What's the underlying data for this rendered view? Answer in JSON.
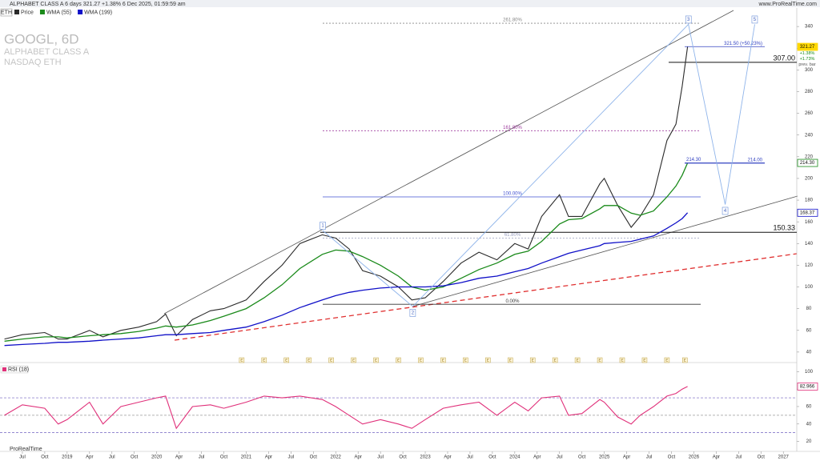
{
  "header": {
    "title": "ALPHABET CLASS A 6 days 321.27 +1.38% 6 Dec 2025, 01:59:59 am",
    "site": "www.ProRealTime.com",
    "tab": "ETH",
    "brand": "ProRealTime"
  },
  "chart_data": [
    {
      "type": "line",
      "title": "GOOGL, 6D",
      "subtitle": "ALPHABET CLASS A",
      "exchange": "NASDAQ ETH",
      "x": [
        2018.3,
        2018.5,
        2018.75,
        2018.9,
        2019.0,
        2019.25,
        2019.4,
        2019.6,
        2019.8,
        2020.0,
        2020.1,
        2020.22,
        2020.4,
        2020.6,
        2020.75,
        2021.0,
        2021.2,
        2021.4,
        2021.6,
        2021.85,
        2022.0,
        2022.15,
        2022.3,
        2022.5,
        2022.7,
        2022.85,
        2023.0,
        2023.2,
        2023.4,
        2023.6,
        2023.8,
        2024.0,
        2024.15,
        2024.3,
        2024.5,
        2024.6,
        2024.75,
        2024.95,
        2025.0,
        2025.15,
        2025.3,
        2025.4,
        2025.55,
        2025.7,
        2025.8,
        2025.87,
        2025.93
      ],
      "series": [
        {
          "name": "Price",
          "color": "#2a2a2a",
          "values": [
            52,
            56,
            58,
            52,
            52,
            60,
            54,
            60,
            63,
            68,
            75,
            55,
            70,
            78,
            80,
            88,
            105,
            120,
            140,
            148,
            145,
            135,
            115,
            110,
            100,
            88,
            90,
            105,
            122,
            132,
            125,
            140,
            135,
            165,
            185,
            165,
            165,
            195,
            200,
            175,
            155,
            165,
            185,
            235,
            250,
            285,
            321.27
          ]
        },
        {
          "name": "WMA (55)",
          "color": "#1a8a1a",
          "values": [
            50,
            52,
            54,
            54,
            53,
            55,
            56,
            57,
            59,
            62,
            64,
            63,
            65,
            69,
            73,
            80,
            90,
            102,
            117,
            130,
            134,
            133,
            128,
            120,
            110,
            100,
            97,
            100,
            108,
            116,
            122,
            130,
            133,
            142,
            158,
            162,
            163,
            172,
            175,
            175,
            168,
            166,
            170,
            183,
            193,
            203,
            214.3
          ]
        },
        {
          "name": "WMA (199)",
          "color": "#1010c8",
          "values": [
            46,
            47,
            48,
            49,
            49,
            50,
            51,
            52,
            53,
            55,
            56,
            56,
            57,
            58,
            60,
            63,
            68,
            74,
            81,
            88,
            92,
            95,
            97,
            99,
            100,
            100,
            100,
            101,
            104,
            108,
            110,
            114,
            117,
            122,
            128,
            131,
            134,
            138,
            140,
            141,
            142,
            144,
            147,
            154,
            159,
            163,
            168.37
          ]
        }
      ],
      "xlim": [
        2018.25,
        2027.15
      ],
      "ylim": [
        34,
        346
      ],
      "yticks": [
        40,
        60,
        80,
        100,
        120,
        140,
        160,
        180,
        200,
        220,
        240,
        260,
        280,
        300,
        320,
        340
      ],
      "hlines": [
        {
          "value": 307,
          "label": "307.00"
        },
        150.33
      ],
      "fib": [
        {
          "price": 343,
          "label": "261.80%",
          "color": "#888888"
        },
        {
          "price": 244,
          "label": "161.80%",
          "color": "#a040a0"
        },
        {
          "price": 183,
          "label": "100.00%",
          "color": "#4050d0"
        },
        {
          "price": 145,
          "label": "61.80%",
          "color": "#9aa0c0"
        },
        {
          "price": 84,
          "label": "0.00%",
          "color": "#333333"
        }
      ],
      "targets": [
        {
          "value": 321.5,
          "label": "321.50 (+50.23%)"
        },
        {
          "value": 214.3,
          "label": "214.30"
        },
        {
          "value": 214,
          "label": "214.00"
        }
      ],
      "waves": {
        "labels": [
          "1",
          "2",
          "3",
          "4",
          "5"
        ],
        "x": [
          2021.855,
          2022.86,
          2025.94,
          2026.35,
          2026.68
        ],
        "y": [
          152,
          82,
          342,
          176,
          342
        ]
      },
      "badges": [
        {
          "value": 321.27,
          "color": "#ffd800"
        },
        {
          "value": 214.3,
          "label": "214.30",
          "color": "#1a8a1a"
        },
        {
          "value": 168.37,
          "color": "#1010c8"
        }
      ],
      "change_labels": [
        "+1.38%",
        "+1.73%",
        "prev. bar"
      ],
      "earnings_label": "E",
      "earnings_x": [
        2020.95,
        2021.2,
        2021.45,
        2021.7,
        2021.95,
        2022.2,
        2022.45,
        2022.7,
        2022.95,
        2023.2,
        2023.45,
        2023.7,
        2023.95,
        2024.2,
        2024.45,
        2024.7,
        2024.95,
        2025.2,
        2025.45,
        2025.7,
        2025.9
      ]
    },
    {
      "type": "line",
      "title": "RSI (18)",
      "x": [
        2018.3,
        2018.5,
        2018.75,
        2018.9,
        2019.0,
        2019.25,
        2019.4,
        2019.6,
        2019.8,
        2020.0,
        2020.1,
        2020.22,
        2020.4,
        2020.6,
        2020.75,
        2021.0,
        2021.2,
        2021.4,
        2021.6,
        2021.85,
        2022.0,
        2022.15,
        2022.3,
        2022.5,
        2022.7,
        2022.85,
        2023.0,
        2023.2,
        2023.4,
        2023.6,
        2023.8,
        2024.0,
        2024.15,
        2024.3,
        2024.5,
        2024.6,
        2024.75,
        2024.95,
        2025.0,
        2025.15,
        2025.3,
        2025.4,
        2025.55,
        2025.7,
        2025.8,
        2025.87,
        2025.93
      ],
      "series": [
        {
          "name": "RSI (18)",
          "color": "#e0307a",
          "values": [
            50,
            62,
            58,
            40,
            45,
            65,
            40,
            60,
            65,
            70,
            72,
            35,
            60,
            62,
            58,
            65,
            72,
            70,
            72,
            68,
            60,
            50,
            40,
            45,
            40,
            35,
            45,
            58,
            62,
            65,
            50,
            65,
            55,
            70,
            72,
            50,
            52,
            68,
            65,
            48,
            40,
            50,
            60,
            72,
            75,
            80,
            82.966
          ]
        }
      ],
      "xlim": [
        2018.25,
        2027.15
      ],
      "ylim": [
        15,
        104
      ],
      "yticks": [
        20,
        40,
        60,
        80,
        100
      ],
      "levels": [
        30,
        50,
        70
      ],
      "xticks": [
        {
          "value": 2018.5,
          "label": "Jul"
        },
        {
          "value": 2018.75,
          "label": "Oct"
        },
        2019,
        {
          "value": 2019.25,
          "label": "Apr"
        },
        {
          "value": 2019.5,
          "label": "Jul"
        },
        {
          "value": 2019.75,
          "label": "Oct"
        },
        2020,
        {
          "value": 2020.25,
          "label": "Apr"
        },
        {
          "value": 2020.5,
          "label": "Jul"
        },
        {
          "value": 2020.75,
          "label": "Oct"
        },
        2021,
        {
          "value": 2021.25,
          "label": "Apr"
        },
        {
          "value": 2021.5,
          "label": "Jul"
        },
        {
          "value": 2021.75,
          "label": "Oct"
        },
        2022,
        {
          "value": 2022.25,
          "label": "Apr"
        },
        {
          "value": 2022.5,
          "label": "Jul"
        },
        {
          "value": 2022.75,
          "label": "Oct"
        },
        2023,
        {
          "value": 2023.25,
          "label": "Apr"
        },
        {
          "value": 2023.5,
          "label": "Jul"
        },
        {
          "value": 2023.75,
          "label": "Oct"
        },
        2024,
        {
          "value": 2024.25,
          "label": "Apr"
        },
        {
          "value": 2024.5,
          "label": "Jul"
        },
        {
          "value": 2024.75,
          "label": "Oct"
        },
        2025,
        {
          "value": 2025.25,
          "label": "Apr"
        },
        {
          "value": 2025.5,
          "label": "Jul"
        },
        {
          "value": 2025.75,
          "label": "Oct"
        },
        2026,
        {
          "value": 2026.25,
          "label": "Apr"
        },
        {
          "value": 2026.5,
          "label": "Jul"
        },
        {
          "value": 2026.75,
          "label": "Oct"
        },
        2027
      ]
    }
  ]
}
